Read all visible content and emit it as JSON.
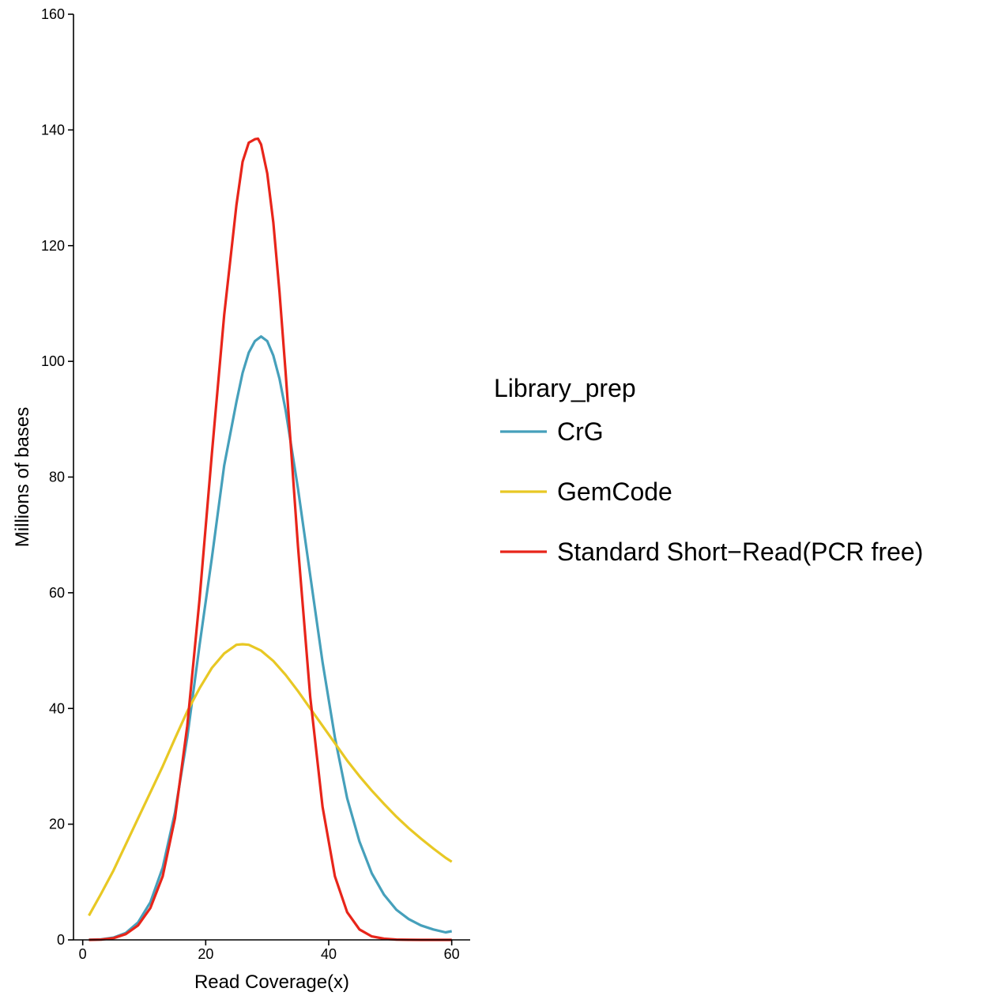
{
  "chart_data": {
    "type": "line",
    "xlabel": "Read Coverage(x)",
    "ylabel": "Millions of bases",
    "xlim": [
      -1.5,
      63
    ],
    "ylim": [
      0,
      160
    ],
    "xticks": [
      0,
      20,
      40,
      60
    ],
    "yticks": [
      0,
      20,
      40,
      60,
      80,
      100,
      120,
      140,
      160
    ],
    "grid": false,
    "legend": {
      "title": "Library_prep",
      "placement": "right"
    },
    "series": [
      {
        "name": "CrG",
        "color": "#46A0BB",
        "x": [
          1,
          3,
          5,
          7,
          9,
          11,
          13,
          15,
          17,
          19,
          21,
          23,
          25,
          26,
          27,
          28,
          29,
          30,
          31,
          32,
          33,
          35,
          37,
          39,
          41,
          43,
          45,
          47,
          49,
          51,
          53,
          55,
          57,
          59,
          60
        ],
        "y": [
          0.02,
          0.1,
          0.4,
          1.2,
          3,
          6.5,
          12.5,
          22,
          35,
          51,
          66,
          82,
          93,
          98,
          101.5,
          103.5,
          104.3,
          103.5,
          101,
          97,
          91.5,
          78,
          63,
          48,
          35,
          24.5,
          17,
          11.5,
          7.8,
          5.2,
          3.6,
          2.5,
          1.8,
          1.3,
          1.5
        ]
      },
      {
        "name": "GemCode",
        "color": "#E8C824",
        "x": [
          1,
          3,
          5,
          7,
          9,
          11,
          13,
          15,
          17,
          19,
          21,
          23,
          25,
          26,
          27,
          29,
          31,
          33,
          35,
          37,
          39,
          41,
          43,
          45,
          47,
          49,
          51,
          53,
          55,
          57,
          59,
          60
        ],
        "y": [
          4.2,
          8,
          12,
          16.5,
          21,
          25.5,
          30,
          34.8,
          39.5,
          43.5,
          47,
          49.5,
          51,
          51.1,
          51,
          50,
          48.2,
          45.8,
          43,
          40,
          37,
          34,
          31,
          28.3,
          25.8,
          23.5,
          21.3,
          19.3,
          17.5,
          15.8,
          14.2,
          13.5
        ]
      },
      {
        "name": "Standard Short−Read(PCR free)",
        "color": "#E8251A",
        "x": [
          1,
          3,
          5,
          7,
          9,
          11,
          13,
          15,
          17,
          19,
          21,
          23,
          25,
          26,
          27,
          28,
          28.5,
          29,
          30,
          31,
          32,
          33,
          35,
          37,
          39,
          41,
          43,
          45,
          47,
          49,
          51,
          53,
          55,
          57,
          59,
          60
        ],
        "y": [
          0,
          0.05,
          0.3,
          1,
          2.5,
          5.5,
          11,
          21,
          37,
          59,
          84,
          108,
          127,
          134.5,
          137.8,
          138.4,
          138.5,
          137.5,
          132.5,
          124,
          112,
          98,
          68,
          42,
          23,
          11,
          4.8,
          1.8,
          0.6,
          0.2,
          0.05,
          0.02,
          0,
          0,
          0,
          0
        ]
      }
    ]
  }
}
